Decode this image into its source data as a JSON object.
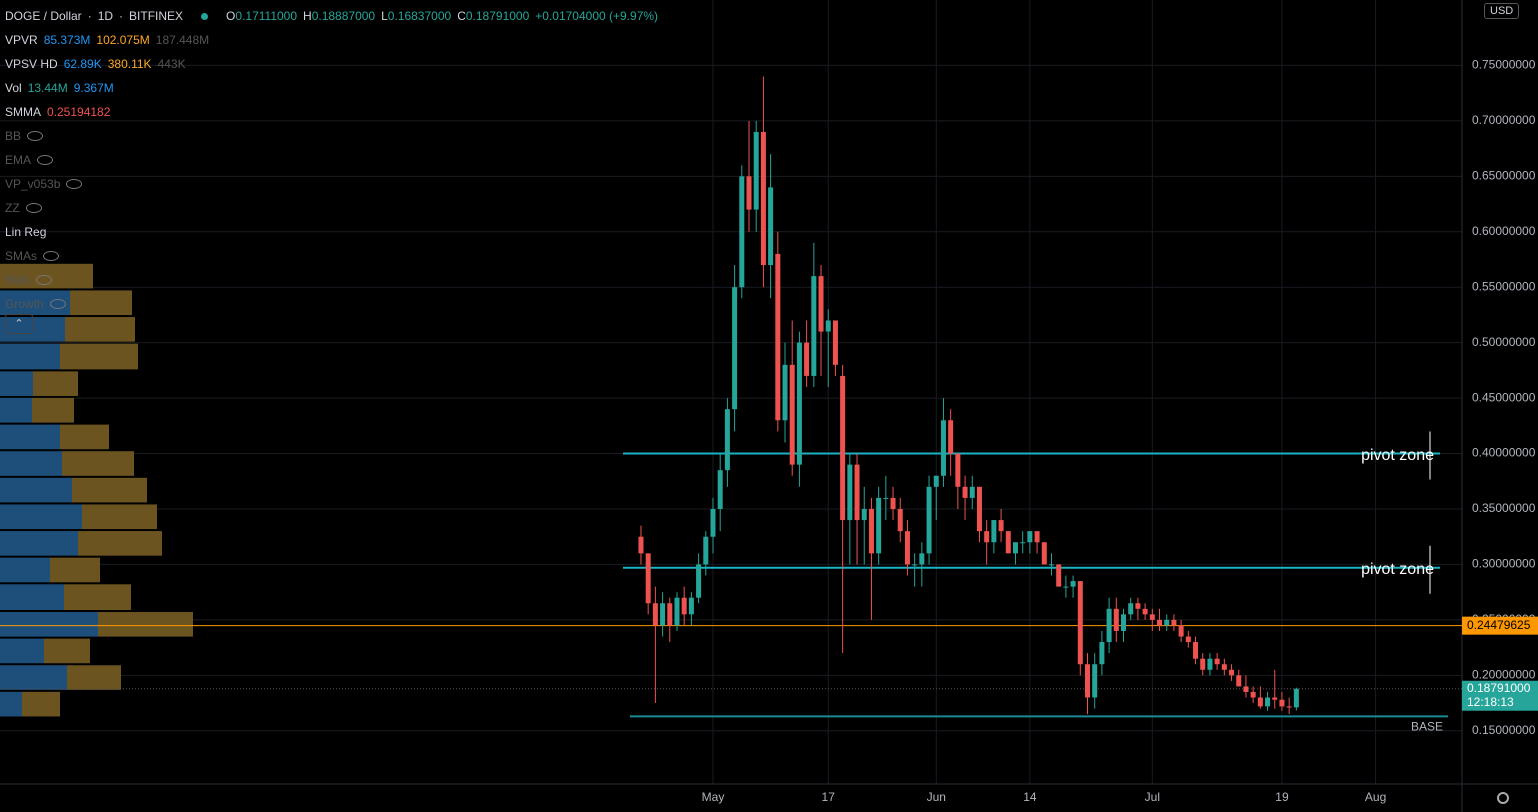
{
  "header": {
    "symbol": "DOGE / Dollar",
    "interval": "1D",
    "exchange": "BITFINEX",
    "ohlc": [
      {
        "key": "O",
        "value": "0.17111000"
      },
      {
        "key": "H",
        "value": "0.18887000"
      },
      {
        "key": "L",
        "value": "0.16837000"
      },
      {
        "key": "C",
        "value": "0.18791000"
      }
    ],
    "change": "+0.01704000 (+9.97%)"
  },
  "indicators": [
    {
      "name": "VPVR",
      "values": [
        "85.373M",
        "102.075M",
        "187.448M"
      ],
      "colors": [
        "#2196f3",
        "#ffa726",
        "#555"
      ]
    },
    {
      "name": "VPSV HD",
      "values": [
        "62.89K",
        "380.11K",
        "443K"
      ],
      "colors": [
        "#2196f3",
        "#ffa726",
        "#555"
      ]
    },
    {
      "name": "Vol",
      "values": [
        "13.44M",
        "9.367M"
      ],
      "colors": [
        "#26a69a",
        "#2196f3"
      ]
    },
    {
      "name": "SMMA",
      "values": [
        "0.25194182"
      ],
      "colors": [
        "#ef5350"
      ]
    },
    {
      "name": "BB",
      "hidden": true
    },
    {
      "name": "EMA",
      "hidden": true
    },
    {
      "name": "VP_v053b",
      "hidden": true
    },
    {
      "name": "ZZ",
      "hidden": true
    },
    {
      "name": "Lin Reg"
    },
    {
      "name": "SMAs",
      "hidden": true
    },
    {
      "name": "5MA",
      "hidden": true
    },
    {
      "name": "Growth",
      "hidden": true
    }
  ],
  "currency": "USD",
  "chart_data": {
    "type": "candlestick",
    "up_color": "#26a69a",
    "down_color": "#ef5350",
    "ylim": [
      0.102,
      0.809
    ],
    "yticks": [
      {
        "value": 0.15,
        "label": "0.15000000"
      },
      {
        "value": 0.2,
        "label": "0.20000000"
      },
      {
        "value": 0.25,
        "label": "0.25000000"
      },
      {
        "value": 0.3,
        "label": "0.30000000"
      },
      {
        "value": 0.35,
        "label": "0.35000000"
      },
      {
        "value": 0.4,
        "label": "0.40000000"
      },
      {
        "value": 0.45,
        "label": "0.45000000"
      },
      {
        "value": 0.5,
        "label": "0.50000000"
      },
      {
        "value": 0.55,
        "label": "0.55000000"
      },
      {
        "value": 0.6,
        "label": "0.60000000"
      },
      {
        "value": 0.65,
        "label": "0.65000000"
      },
      {
        "value": 0.7,
        "label": "0.70000000"
      },
      {
        "value": 0.75,
        "label": "0.75000000"
      }
    ],
    "xlim": [
      "01-22",
      "08-13"
    ],
    "xticks": [
      {
        "value": "05-01",
        "label": "May"
      },
      {
        "value": "05-17",
        "label": "17"
      },
      {
        "value": "06-01",
        "label": "Jun"
      },
      {
        "value": "06-14",
        "label": "14"
      },
      {
        "value": "07-01",
        "label": "Jul"
      },
      {
        "value": "07-19",
        "label": "19"
      },
      {
        "value": "08-01",
        "label": "Aug"
      }
    ],
    "x": [
      "04-21",
      "04-22",
      "04-23",
      "04-24",
      "04-25",
      "04-26",
      "04-27",
      "04-28",
      "04-29",
      "04-30",
      "05-01",
      "05-02",
      "05-03",
      "05-04",
      "05-05",
      "05-06",
      "05-07",
      "05-08",
      "05-09",
      "05-10",
      "05-11",
      "05-12",
      "05-13",
      "05-14",
      "05-15",
      "05-16",
      "05-17",
      "05-18",
      "05-19",
      "05-20",
      "05-21",
      "05-22",
      "05-23",
      "05-24",
      "05-25",
      "05-26",
      "05-27",
      "05-28",
      "05-29",
      "05-30",
      "05-31",
      "06-01",
      "06-02",
      "06-03",
      "06-04",
      "06-05",
      "06-06",
      "06-07",
      "06-08",
      "06-09",
      "06-10",
      "06-11",
      "06-12",
      "06-13",
      "06-14",
      "06-15",
      "06-16",
      "06-17",
      "06-18",
      "06-19",
      "06-20",
      "06-21",
      "06-22",
      "06-23",
      "06-24",
      "06-25",
      "06-26",
      "06-27",
      "06-28",
      "06-29",
      "06-30",
      "07-01",
      "07-02",
      "07-03",
      "07-04",
      "07-05",
      "07-06",
      "07-07",
      "07-08",
      "07-09",
      "07-10",
      "07-11",
      "07-12",
      "07-13",
      "07-14",
      "07-15",
      "07-16",
      "07-17",
      "07-18",
      "07-19",
      "07-20",
      "07-21"
    ],
    "candles": [
      [
        0.325,
        0.335,
        0.3,
        0.31
      ],
      [
        0.31,
        0.31,
        0.255,
        0.265
      ],
      [
        0.265,
        0.28,
        0.175,
        0.245
      ],
      [
        0.245,
        0.275,
        0.235,
        0.265
      ],
      [
        0.265,
        0.27,
        0.23,
        0.245
      ],
      [
        0.245,
        0.275,
        0.24,
        0.27
      ],
      [
        0.27,
        0.28,
        0.245,
        0.255
      ],
      [
        0.255,
        0.275,
        0.245,
        0.27
      ],
      [
        0.27,
        0.31,
        0.265,
        0.3
      ],
      [
        0.3,
        0.33,
        0.29,
        0.325
      ],
      [
        0.325,
        0.36,
        0.31,
        0.35
      ],
      [
        0.35,
        0.4,
        0.33,
        0.385
      ],
      [
        0.385,
        0.45,
        0.37,
        0.44
      ],
      [
        0.44,
        0.57,
        0.42,
        0.55
      ],
      [
        0.55,
        0.66,
        0.54,
        0.65
      ],
      [
        0.65,
        0.7,
        0.6,
        0.62
      ],
      [
        0.62,
        0.7,
        0.6,
        0.69
      ],
      [
        0.69,
        0.74,
        0.55,
        0.57
      ],
      [
        0.57,
        0.67,
        0.54,
        0.64
      ],
      [
        0.58,
        0.6,
        0.42,
        0.43
      ],
      [
        0.43,
        0.5,
        0.41,
        0.48
      ],
      [
        0.48,
        0.52,
        0.38,
        0.39
      ],
      [
        0.39,
        0.51,
        0.37,
        0.5
      ],
      [
        0.5,
        0.52,
        0.46,
        0.47
      ],
      [
        0.47,
        0.59,
        0.46,
        0.56
      ],
      [
        0.56,
        0.57,
        0.47,
        0.51
      ],
      [
        0.51,
        0.53,
        0.46,
        0.52
      ],
      [
        0.52,
        0.52,
        0.47,
        0.48
      ],
      [
        0.47,
        0.48,
        0.22,
        0.34
      ],
      [
        0.34,
        0.4,
        0.3,
        0.39
      ],
      [
        0.39,
        0.4,
        0.3,
        0.34
      ],
      [
        0.34,
        0.37,
        0.3,
        0.35
      ],
      [
        0.35,
        0.36,
        0.25,
        0.31
      ],
      [
        0.31,
        0.37,
        0.3,
        0.36
      ],
      [
        0.36,
        0.38,
        0.34,
        0.36
      ],
      [
        0.36,
        0.37,
        0.34,
        0.35
      ],
      [
        0.35,
        0.36,
        0.32,
        0.33
      ],
      [
        0.33,
        0.34,
        0.29,
        0.3
      ],
      [
        0.3,
        0.31,
        0.28,
        0.3
      ],
      [
        0.3,
        0.32,
        0.28,
        0.31
      ],
      [
        0.31,
        0.38,
        0.3,
        0.37
      ],
      [
        0.37,
        0.38,
        0.34,
        0.38
      ],
      [
        0.38,
        0.45,
        0.37,
        0.43
      ],
      [
        0.43,
        0.44,
        0.38,
        0.4
      ],
      [
        0.4,
        0.4,
        0.35,
        0.37
      ],
      [
        0.37,
        0.38,
        0.34,
        0.36
      ],
      [
        0.36,
        0.38,
        0.35,
        0.37
      ],
      [
        0.37,
        0.37,
        0.32,
        0.33
      ],
      [
        0.33,
        0.34,
        0.3,
        0.32
      ],
      [
        0.32,
        0.34,
        0.31,
        0.34
      ],
      [
        0.34,
        0.35,
        0.32,
        0.33
      ],
      [
        0.33,
        0.33,
        0.31,
        0.31
      ],
      [
        0.31,
        0.32,
        0.3,
        0.32
      ],
      [
        0.32,
        0.33,
        0.31,
        0.32
      ],
      [
        0.32,
        0.33,
        0.31,
        0.33
      ],
      [
        0.33,
        0.33,
        0.31,
        0.32
      ],
      [
        0.32,
        0.32,
        0.3,
        0.3
      ],
      [
        0.3,
        0.31,
        0.29,
        0.3
      ],
      [
        0.3,
        0.3,
        0.28,
        0.28
      ],
      [
        0.28,
        0.29,
        0.27,
        0.28
      ],
      [
        0.28,
        0.29,
        0.27,
        0.285
      ],
      [
        0.285,
        0.285,
        0.2,
        0.21
      ],
      [
        0.21,
        0.22,
        0.165,
        0.18
      ],
      [
        0.18,
        0.22,
        0.17,
        0.21
      ],
      [
        0.21,
        0.24,
        0.2,
        0.23
      ],
      [
        0.23,
        0.27,
        0.22,
        0.26
      ],
      [
        0.26,
        0.27,
        0.23,
        0.24
      ],
      [
        0.24,
        0.26,
        0.23,
        0.255
      ],
      [
        0.255,
        0.27,
        0.25,
        0.265
      ],
      [
        0.265,
        0.27,
        0.25,
        0.26
      ],
      [
        0.26,
        0.265,
        0.25,
        0.255
      ],
      [
        0.255,
        0.26,
        0.24,
        0.25
      ],
      [
        0.25,
        0.26,
        0.24,
        0.245
      ],
      [
        0.245,
        0.255,
        0.24,
        0.25
      ],
      [
        0.25,
        0.255,
        0.24,
        0.245
      ],
      [
        0.245,
        0.25,
        0.23,
        0.235
      ],
      [
        0.235,
        0.24,
        0.225,
        0.23
      ],
      [
        0.23,
        0.235,
        0.21,
        0.215
      ],
      [
        0.215,
        0.22,
        0.2,
        0.205
      ],
      [
        0.205,
        0.22,
        0.2,
        0.215
      ],
      [
        0.215,
        0.22,
        0.205,
        0.21
      ],
      [
        0.21,
        0.215,
        0.2,
        0.205
      ],
      [
        0.205,
        0.21,
        0.195,
        0.2
      ],
      [
        0.2,
        0.205,
        0.19,
        0.19
      ],
      [
        0.19,
        0.2,
        0.18,
        0.185
      ],
      [
        0.185,
        0.19,
        0.175,
        0.18
      ],
      [
        0.18,
        0.19,
        0.17,
        0.172
      ],
      [
        0.172,
        0.185,
        0.168,
        0.18
      ],
      [
        0.18,
        0.205,
        0.17,
        0.178
      ],
      [
        0.178,
        0.185,
        0.168,
        0.172
      ],
      [
        0.172,
        0.18,
        0.165,
        0.171
      ],
      [
        0.17111,
        0.18887,
        0.16837,
        0.18791
      ]
    ],
    "levels": [
      {
        "value": 0.4,
        "label": "pivot zone",
        "color": "#1ab3c4"
      },
      {
        "value": 0.297,
        "label": "pivot zone",
        "color": "#1ab3c4"
      },
      {
        "value": 0.163,
        "label": "BASE",
        "color": "#1a8a94"
      }
    ],
    "price_line": {
      "value": 0.24479625,
      "label": "0.24479625",
      "color": "#ff9800"
    },
    "last_price": {
      "value": 0.18791,
      "label": "0.18791000",
      "countdown": "12:18:13",
      "color": "#26a69a"
    },
    "volume_profile": {
      "bins": [
        0.572,
        0.548,
        0.524,
        0.5,
        0.475,
        0.451,
        0.427,
        0.403,
        0.379,
        0.355,
        0.331,
        0.307,
        0.283,
        0.258,
        0.234,
        0.21,
        0.186,
        0.162
      ],
      "up": [
        0,
        70,
        65,
        60,
        33,
        32,
        60,
        62,
        72,
        82,
        78,
        50,
        64,
        98,
        44,
        67,
        22
      ],
      "down": [
        93,
        62,
        70,
        78,
        45,
        42,
        49,
        72,
        75,
        75,
        84,
        50,
        67,
        95,
        46,
        54,
        38
      ],
      "up_color": "#1d4f7a",
      "down_color": "#6b5420"
    }
  }
}
